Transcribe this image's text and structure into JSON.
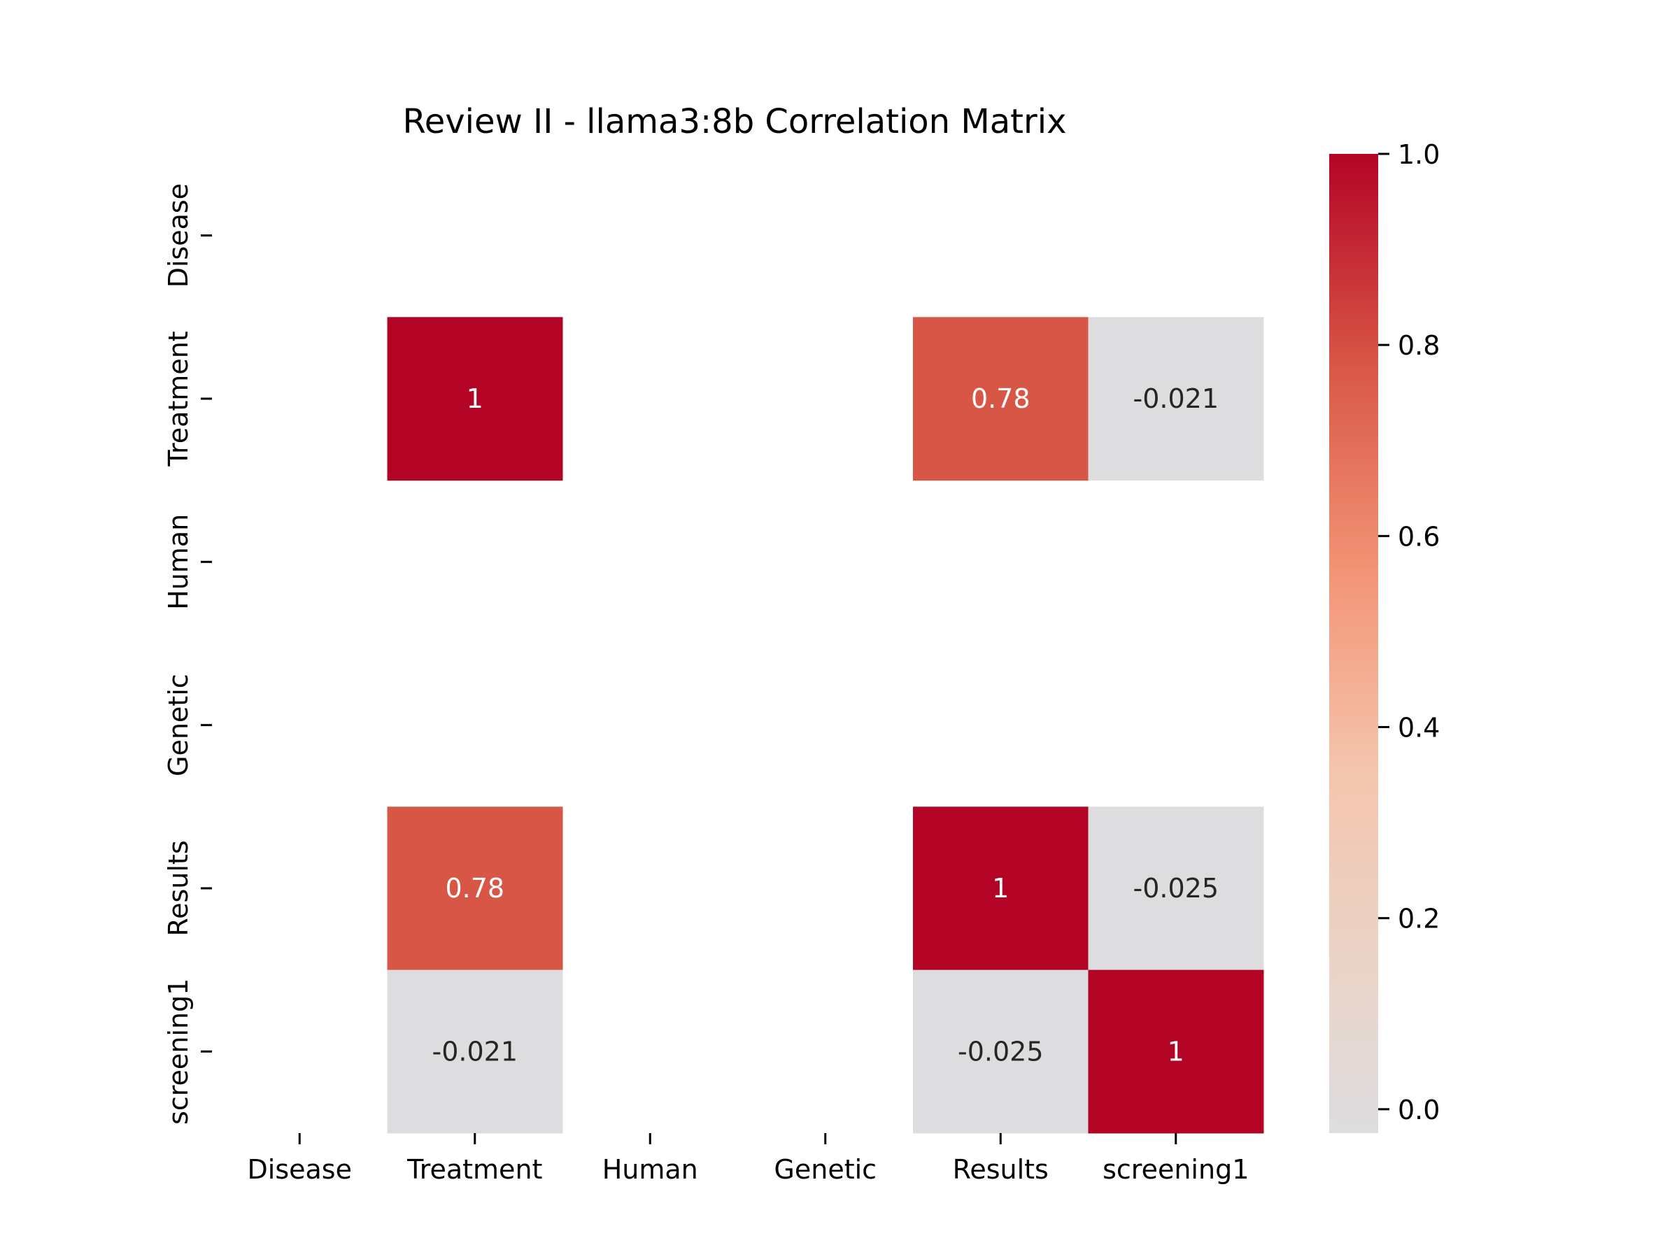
{
  "chart_data": {
    "type": "heatmap",
    "title": "Review II - llama3:8b Correlation Matrix",
    "xlabel": "",
    "ylabel": "",
    "x_categories": [
      "Disease",
      "Treatment",
      "Human",
      "Genetic",
      "Results",
      "screening1"
    ],
    "y_categories": [
      "Disease",
      "Treatment",
      "Human",
      "Genetic",
      "Results",
      "screening1"
    ],
    "values": [
      [
        null,
        null,
        null,
        null,
        null,
        null
      ],
      [
        null,
        1,
        null,
        null,
        0.78,
        -0.021
      ],
      [
        null,
        null,
        null,
        null,
        null,
        null
      ],
      [
        null,
        null,
        null,
        null,
        null,
        null
      ],
      [
        null,
        0.78,
        null,
        null,
        1,
        -0.025
      ],
      [
        null,
        -0.021,
        null,
        null,
        -0.025,
        1
      ]
    ],
    "cell_labels": [
      [
        null,
        null,
        null,
        null,
        null,
        null
      ],
      [
        null,
        "1",
        null,
        null,
        "0.78",
        "-0.021"
      ],
      [
        null,
        null,
        null,
        null,
        null,
        null
      ],
      [
        null,
        null,
        null,
        null,
        null,
        null
      ],
      [
        null,
        "0.78",
        null,
        null,
        "1",
        "-0.025"
      ],
      [
        null,
        "-0.021",
        null,
        null,
        "-0.025",
        "1"
      ]
    ],
    "colorbar": {
      "range": [
        -0.025,
        1.0
      ],
      "ticks": [
        0.0,
        0.2,
        0.4,
        0.6,
        0.8,
        1.0
      ],
      "tick_labels": [
        "0.0",
        "0.2",
        "0.4",
        "0.6",
        "0.8",
        "1.0"
      ],
      "colormap": "coolwarm",
      "center_color": "#dddcdf",
      "high_color": "#b40426"
    },
    "grid": false,
    "legend": "colorbar-right"
  }
}
